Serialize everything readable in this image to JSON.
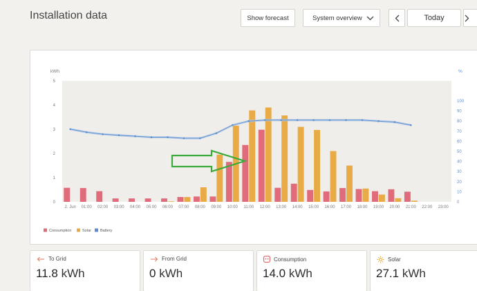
{
  "header": {
    "title": "Installation data",
    "show_forecast_label": "Show forecast",
    "view_select_value": "System overview",
    "today_label": "Today"
  },
  "icons": {
    "view_select": "chevron-down-icon",
    "prev": "chevron-left-icon",
    "next": "chevron-right-icon",
    "to_grid": "arrow-left-icon",
    "from_grid": "arrow-right-icon",
    "consumption": "outlet-icon",
    "solar": "sun-icon"
  },
  "stats": [
    {
      "label": "To Grid",
      "value": "11.8",
      "unit": "kWh",
      "icon_color": "#e07a5f"
    },
    {
      "label": "From Grid",
      "value": "0",
      "unit": "kWh",
      "icon_color": "#e07a5f"
    },
    {
      "label": "Consumption",
      "value": "14.0",
      "unit": "kWh",
      "icon_color": "#d9534f"
    },
    {
      "label": "Solar",
      "value": "27.1",
      "unit": "kWh",
      "icon_color": "#e8a93a"
    }
  ],
  "chart_data": {
    "type": "bar",
    "ylabel": "kWh",
    "y2label": "%",
    "ylim": [
      0,
      5
    ],
    "y_ticks": [
      0,
      1,
      2,
      3,
      4,
      5
    ],
    "y2lim": [
      0,
      100
    ],
    "y2_ticks": [
      0,
      10,
      20,
      30,
      40,
      50,
      60,
      70,
      80,
      90,
      100
    ],
    "categories": [
      "2. Jun",
      "01:00",
      "02:00",
      "03:00",
      "04:00",
      "05:00",
      "06:00",
      "07:00",
      "08:00",
      "09:00",
      "10:00",
      "11:00",
      "12:00",
      "13:00",
      "14:00",
      "15:00",
      "16:00",
      "17:00",
      "18:00",
      "19:00",
      "20:00",
      "21:00",
      "22:00",
      "23:00"
    ],
    "legend_position": "bottom-left",
    "grid": false,
    "colors": {
      "consumption": "#e06c7b",
      "solar": "#e8ab45",
      "battery": "#5b8fd0",
      "battery_band": "#b6cbe6",
      "annotation_arrow": "#3aaa3a",
      "plot_bg": "#f0eeeb"
    },
    "series": [
      {
        "name": "Consumption",
        "values": [
          0.58,
          0.57,
          0.44,
          0.14,
          0.14,
          0.14,
          0.14,
          0.2,
          0.22,
          0.22,
          1.65,
          2.35,
          2.98,
          0.58,
          0.75,
          0.49,
          0.43,
          0.57,
          0.53,
          0.44,
          0.52,
          0.42,
          null,
          null
        ]
      },
      {
        "name": "Solar",
        "values": [
          null,
          null,
          null,
          null,
          null,
          null,
          0.02,
          0.2,
          0.6,
          1.95,
          3.15,
          3.78,
          3.9,
          3.57,
          3.1,
          2.97,
          2.1,
          1.5,
          0.55,
          0.3,
          0.15,
          0.05,
          null,
          null
        ]
      },
      {
        "name": "Battery",
        "axis": "%",
        "values": [
          72,
          69,
          67,
          66,
          65,
          64,
          64,
          63,
          63,
          68,
          76,
          80,
          81,
          81,
          81,
          81,
          81,
          81,
          81,
          80,
          79,
          76,
          null,
          null
        ]
      }
    ]
  }
}
